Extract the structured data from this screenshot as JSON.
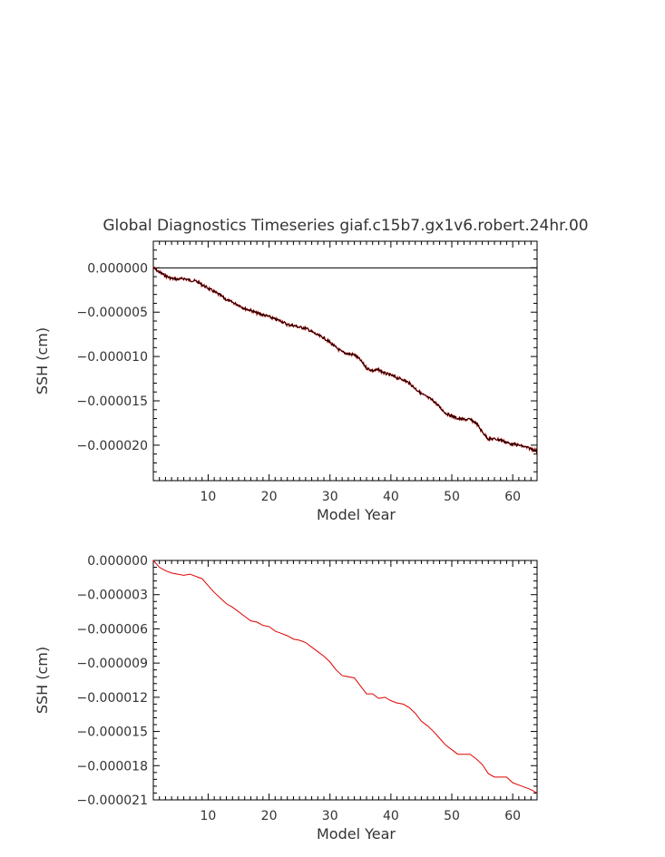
{
  "title": "Global Diagnostics Timeseries giaf.c15b7.gx1v6.robert.24hr.00",
  "colors": {
    "raw_series": "#000000",
    "smooth_series": "#e00000",
    "axes": "#000000",
    "text": "#333333"
  },
  "chart_data": [
    {
      "type": "line",
      "title": "Global Diagnostics Timeseries giaf.c15b7.gx1v6.robert.24hr.00",
      "xlabel": "Model Year",
      "ylabel": "SSH (cm)",
      "xlim": [
        1,
        64
      ],
      "ylim": [
        -2.4e-05,
        3e-06
      ],
      "xticks": [
        10,
        20,
        30,
        40,
        50,
        60
      ],
      "xtick_labels": [
        "10",
        "20",
        "30",
        "40",
        "50",
        "60"
      ],
      "yticks": [
        0,
        -5e-06,
        -1e-05,
        -1.5e-05,
        -2e-05
      ],
      "ytick_labels": [
        "0.000000",
        "−0.000005",
        "−0.000010",
        "−0.000015",
        "−0.000020"
      ],
      "reference_line": 0,
      "grid": false,
      "series": [
        {
          "style": "daily (noisy), black with red overlay",
          "x": [
            1,
            2,
            3,
            4,
            5,
            6,
            7,
            8,
            9,
            10,
            11,
            12,
            13,
            14,
            15,
            16,
            17,
            18,
            19,
            20,
            21,
            22,
            23,
            24,
            25,
            26,
            27,
            28,
            29,
            30,
            31,
            32,
            33,
            34,
            35,
            36,
            37,
            38,
            39,
            40,
            41,
            42,
            43,
            44,
            45,
            46,
            47,
            48,
            49,
            50,
            51,
            52,
            53,
            54,
            55,
            56,
            57,
            58,
            59,
            60,
            61,
            62,
            63,
            64
          ],
          "values": [
            0,
            -5e-07,
            -9e-07,
            -1.2e-06,
            -1.3e-06,
            -1.2e-06,
            -1.4e-06,
            -1.5e-06,
            -1.9e-06,
            -2.3e-06,
            -2.7e-06,
            -3.1e-06,
            -3.6e-06,
            -3.9e-06,
            -4.2e-06,
            -4.6e-06,
            -4.8e-06,
            -5.1e-06,
            -5.3e-06,
            -5.5e-06,
            -5.8e-06,
            -6e-06,
            -6.4e-06,
            -6.5e-06,
            -6.7e-06,
            -6.8e-06,
            -7.2e-06,
            -7.6e-06,
            -7.9e-06,
            -8.4e-06,
            -9e-06,
            -9.5e-06,
            -9.7e-06,
            -9.8e-06,
            -1.04e-05,
            -1.13e-05,
            -1.16e-05,
            -1.15e-05,
            -1.19e-05,
            -1.21e-05,
            -1.24e-05,
            -1.26e-05,
            -1.3e-05,
            -1.36e-05,
            -1.42e-05,
            -1.46e-05,
            -1.5e-05,
            -1.57e-05,
            -1.64e-05,
            -1.67e-05,
            -1.7e-05,
            -1.71e-05,
            -1.71e-05,
            -1.75e-05,
            -1.85e-05,
            -1.93e-05,
            -1.93e-05,
            -1.94e-05,
            -1.97e-05,
            -1.99e-05,
            -2e-05,
            -2.02e-05,
            -2.04e-05,
            -2.07e-05
          ]
        }
      ]
    },
    {
      "type": "line",
      "title": "",
      "xlabel": "Model Year",
      "ylabel": "SSH (cm)",
      "xlim": [
        1,
        64
      ],
      "ylim": [
        -2.1e-05,
        0
      ],
      "xticks": [
        10,
        20,
        30,
        40,
        50,
        60
      ],
      "xtick_labels": [
        "10",
        "20",
        "30",
        "40",
        "50",
        "60"
      ],
      "yticks": [
        0,
        -3e-06,
        -6e-06,
        -9e-06,
        -1.2e-05,
        -1.5e-05,
        -1.8e-05,
        -2.1e-05
      ],
      "ytick_labels": [
        "0.000000",
        "−0.000003",
        "−0.000006",
        "−0.000009",
        "−0.000012",
        "−0.000015",
        "−0.000018",
        "−0.000021"
      ],
      "grid": false,
      "series": [
        {
          "style": "annual mean, red",
          "x": [
            1,
            2,
            3,
            4,
            5,
            6,
            7,
            8,
            9,
            10,
            11,
            12,
            13,
            14,
            15,
            16,
            17,
            18,
            19,
            20,
            21,
            22,
            23,
            24,
            25,
            26,
            27,
            28,
            29,
            30,
            31,
            32,
            33,
            34,
            35,
            36,
            37,
            38,
            39,
            40,
            41,
            42,
            43,
            44,
            45,
            46,
            47,
            48,
            49,
            50,
            51,
            52,
            53,
            54,
            55,
            56,
            57,
            58,
            59,
            60,
            61,
            62,
            63,
            64
          ],
          "values": [
            0,
            -6e-07,
            -9e-07,
            -1.1e-06,
            -1.2e-06,
            -1.3e-06,
            -1.2e-06,
            -1.4e-06,
            -1.6e-06,
            -2.2e-06,
            -2.8e-06,
            -3.3e-06,
            -3.8e-06,
            -4.1e-06,
            -4.5e-06,
            -4.9e-06,
            -5.3e-06,
            -5.4e-06,
            -5.7e-06,
            -5.8e-06,
            -6.2e-06,
            -6.4e-06,
            -6.6e-06,
            -6.9e-06,
            -7e-06,
            -7.2e-06,
            -7.6e-06,
            -8e-06,
            -8.4e-06,
            -8.9e-06,
            -9.6e-06,
            -1.01e-05,
            -1.02e-05,
            -1.03e-05,
            -1.1e-05,
            -1.17e-05,
            -1.17e-05,
            -1.21e-05,
            -1.2e-05,
            -1.23e-05,
            -1.25e-05,
            -1.26e-05,
            -1.29e-05,
            -1.34e-05,
            -1.41e-05,
            -1.45e-05,
            -1.5e-05,
            -1.56e-05,
            -1.62e-05,
            -1.66e-05,
            -1.7e-05,
            -1.7e-05,
            -1.7e-05,
            -1.74e-05,
            -1.79e-05,
            -1.87e-05,
            -1.9e-05,
            -1.9e-05,
            -1.9e-05,
            -1.95e-05,
            -1.97e-05,
            -1.99e-05,
            -2.01e-05,
            -2.04e-05
          ]
        }
      ]
    }
  ]
}
